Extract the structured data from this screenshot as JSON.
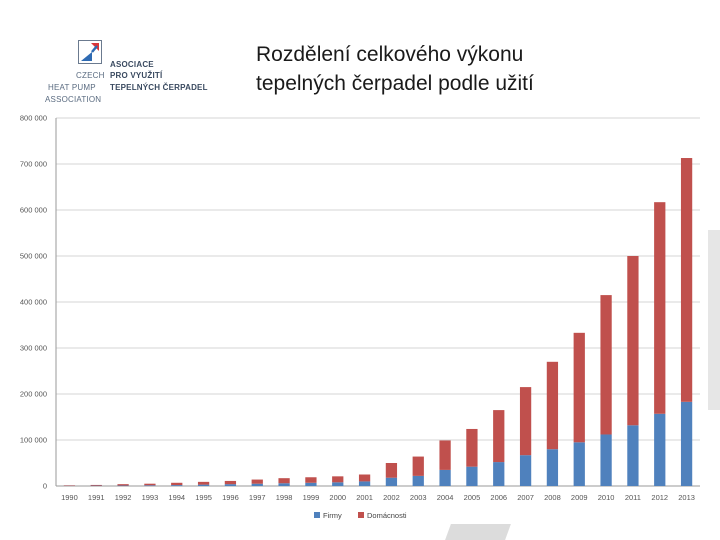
{
  "logo": {
    "line1": "ASOCIACE",
    "line2a": "CZECH",
    "line2b": "PRO VYUŽITÍ",
    "line3a": "HEAT PUMP",
    "line3b": "TEPELNÝCH ČERPADEL",
    "line4": "ASSOCIATION",
    "colors": {
      "red": "#d9353a",
      "blue": "#2f6bb3",
      "gray": "#6b7a8f"
    }
  },
  "header": {
    "title_line1": "Rozdělení celkového výkonu",
    "title_line2": "tepelných čerpadel podle užití"
  },
  "chart_data": {
    "type": "bar",
    "stacked": true,
    "categories": [
      "1990",
      "1991",
      "1992",
      "1993",
      "1994",
      "1995",
      "1996",
      "1997",
      "1998",
      "1999",
      "2000",
      "2001",
      "2002",
      "2003",
      "2004",
      "2005",
      "2006",
      "2007",
      "2008",
      "2009",
      "2010",
      "2011",
      "2012",
      "2013"
    ],
    "series": [
      {
        "name": "Firmy",
        "color": "#4f81bd",
        "values": [
          500,
          800,
          1000,
          1500,
          2000,
          3000,
          4000,
          5000,
          6000,
          7000,
          8000,
          10000,
          18000,
          22000,
          35000,
          42000,
          52000,
          67000,
          80000,
          95000,
          112000,
          132000,
          157000,
          183000
        ]
      },
      {
        "name": "Domácnosti",
        "color": "#c0504d",
        "values": [
          1000,
          1500,
          3000,
          3500,
          5000,
          6000,
          7000,
          9000,
          11000,
          12000,
          13000,
          15000,
          32000,
          42000,
          64000,
          82000,
          113000,
          148000,
          190000,
          238000,
          303000,
          368000,
          460000,
          530000
        ]
      }
    ],
    "y_ticks": [
      "0",
      "100 000",
      "200 000",
      "300 000",
      "400 000",
      "500 000",
      "600 000",
      "700 000",
      "800 000"
    ],
    "ylim": [
      0,
      800000
    ],
    "grid": true,
    "legend_position": "bottom-center"
  }
}
